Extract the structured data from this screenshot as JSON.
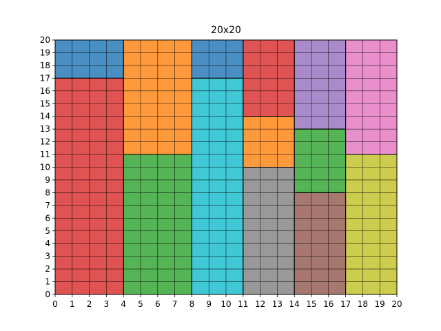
{
  "chart_data": {
    "type": "heatmap",
    "title": "20x20",
    "xlabel": "",
    "ylabel": "",
    "xlim": [
      0,
      20
    ],
    "ylim": [
      0,
      20
    ],
    "xticks": [
      "0",
      "1",
      "2",
      "3",
      "4",
      "5",
      "6",
      "7",
      "8",
      "9",
      "10",
      "11",
      "12",
      "13",
      "14",
      "15",
      "16",
      "17",
      "18",
      "19",
      "20"
    ],
    "yticks": [
      "0",
      "1",
      "2",
      "3",
      "4",
      "5",
      "6",
      "7",
      "8",
      "9",
      "10",
      "11",
      "12",
      "13",
      "14",
      "15",
      "16",
      "17",
      "18",
      "19",
      "20"
    ],
    "grid": true,
    "rectangles": [
      {
        "x0": 0,
        "x1": 4,
        "y0": 17,
        "y1": 20,
        "color": "#4a8fc4"
      },
      {
        "x0": 0,
        "x1": 4,
        "y0": 0,
        "y1": 17,
        "color": "#e05353"
      },
      {
        "x0": 4,
        "x1": 8,
        "y0": 11,
        "y1": 20,
        "color": "#ff9a3c"
      },
      {
        "x0": 4,
        "x1": 8,
        "y0": 0,
        "y1": 11,
        "color": "#55b455"
      },
      {
        "x0": 8,
        "x1": 11,
        "y0": 17,
        "y1": 20,
        "color": "#4a8fc4"
      },
      {
        "x0": 8,
        "x1": 11,
        "y0": 0,
        "y1": 17,
        "color": "#40c8d6"
      },
      {
        "x0": 11,
        "x1": 14,
        "y0": 14,
        "y1": 20,
        "color": "#e05353"
      },
      {
        "x0": 11,
        "x1": 14,
        "y0": 10,
        "y1": 14,
        "color": "#ff9a3c"
      },
      {
        "x0": 11,
        "x1": 14,
        "y0": 0,
        "y1": 10,
        "color": "#999999"
      },
      {
        "x0": 14,
        "x1": 17,
        "y0": 13,
        "y1": 20,
        "color": "#a98bcb"
      },
      {
        "x0": 14,
        "x1": 17,
        "y0": 8,
        "y1": 13,
        "color": "#55b455"
      },
      {
        "x0": 14,
        "x1": 17,
        "y0": 0,
        "y1": 8,
        "color": "#a6786f"
      },
      {
        "x0": 17,
        "x1": 20,
        "y0": 11,
        "y1": 20,
        "color": "#e88fcc"
      },
      {
        "x0": 17,
        "x1": 20,
        "y0": 0,
        "y1": 11,
        "color": "#cccc4e"
      }
    ]
  }
}
